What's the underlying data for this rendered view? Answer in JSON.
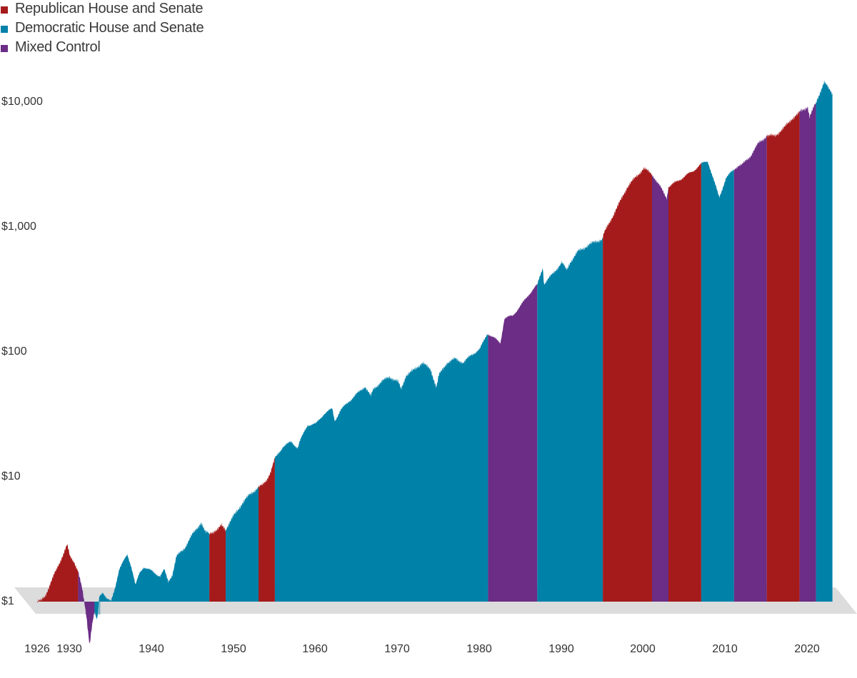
{
  "colors": {
    "republican": "#a51b1b",
    "democratic": "#0081a8",
    "mixed": "#6b2d85",
    "floor": "#dcdcdc"
  },
  "legend": [
    {
      "label": "Republican House and Senate",
      "party": "republican"
    },
    {
      "label": "Democratic House and Senate",
      "party": "democratic"
    },
    {
      "label": "Mixed Control",
      "party": "mixed"
    }
  ],
  "chart_data": {
    "type": "area",
    "yscale": "log",
    "ylim": [
      1,
      20000
    ],
    "xlim": [
      1926,
      2023
    ],
    "y_ticks": [
      {
        "value": 1,
        "label": "$1"
      },
      {
        "value": 10,
        "label": "$10"
      },
      {
        "value": 100,
        "label": "$100"
      },
      {
        "value": 1000,
        "label": "$1,000"
      },
      {
        "value": 10000,
        "label": "$10,000"
      }
    ],
    "x_ticks": [
      {
        "value": 1926,
        "label": "1926"
      },
      {
        "value": 1930,
        "label": "1930"
      },
      {
        "value": 1940,
        "label": "1940"
      },
      {
        "value": 1950,
        "label": "1950"
      },
      {
        "value": 1960,
        "label": "1960"
      },
      {
        "value": 1970,
        "label": "1970"
      },
      {
        "value": 1980,
        "label": "1980"
      },
      {
        "value": 1990,
        "label": "1990"
      },
      {
        "value": 2000,
        "label": "2000"
      },
      {
        "value": 2010,
        "label": "2010"
      },
      {
        "value": 2020,
        "label": "2020"
      }
    ],
    "series_points": [
      [
        1926.0,
        1.0
      ],
      [
        1926.5,
        1.02
      ],
      [
        1927.0,
        1.12
      ],
      [
        1928.0,
        1.6
      ],
      [
        1929.0,
        2.25
      ],
      [
        1929.67,
        2.85
      ],
      [
        1930.0,
        2.3
      ],
      [
        1930.5,
        2.1
      ],
      [
        1931.0,
        1.75
      ],
      [
        1931.5,
        1.25
      ],
      [
        1932.0,
        0.78
      ],
      [
        1932.4,
        0.45
      ],
      [
        1932.7,
        0.65
      ],
      [
        1933.0,
        0.82
      ],
      [
        1933.3,
        0.7
      ],
      [
        1933.6,
        1.12
      ],
      [
        1934.0,
        1.2
      ],
      [
        1934.5,
        1.05
      ],
      [
        1935.0,
        1.0
      ],
      [
        1935.5,
        1.3
      ],
      [
        1936.0,
        1.8
      ],
      [
        1937.0,
        2.4
      ],
      [
        1937.5,
        1.9
      ],
      [
        1938.0,
        1.35
      ],
      [
        1938.5,
        1.7
      ],
      [
        1939.0,
        1.9
      ],
      [
        1940.0,
        1.75
      ],
      [
        1941.0,
        1.6
      ],
      [
        1941.5,
        1.8
      ],
      [
        1942.0,
        1.45
      ],
      [
        1942.5,
        1.65
      ],
      [
        1943.0,
        2.3
      ],
      [
        1944.0,
        2.7
      ],
      [
        1945.0,
        3.5
      ],
      [
        1946.0,
        4.3
      ],
      [
        1946.5,
        3.6
      ],
      [
        1947.0,
        3.55
      ],
      [
        1948.0,
        3.75
      ],
      [
        1948.5,
        4.1
      ],
      [
        1949.0,
        3.8
      ],
      [
        1950.0,
        4.9
      ],
      [
        1951.0,
        6.1
      ],
      [
        1952.0,
        7.3
      ],
      [
        1953.0,
        8.2
      ],
      [
        1953.5,
        8.6
      ],
      [
        1954.0,
        9.5
      ],
      [
        1954.5,
        11.0
      ],
      [
        1955.0,
        14.0
      ],
      [
        1956.0,
        17.5
      ],
      [
        1957.0,
        19.0
      ],
      [
        1957.8,
        17.0
      ],
      [
        1958.0,
        19.0
      ],
      [
        1959.0,
        26.0
      ],
      [
        1960.0,
        26.5
      ],
      [
        1961.0,
        32.0
      ],
      [
        1962.0,
        35.0
      ],
      [
        1962.3,
        28.0
      ],
      [
        1963.0,
        34.0
      ],
      [
        1964.0,
        40.0
      ],
      [
        1965.0,
        46.0
      ],
      [
        1966.0,
        53.0
      ],
      [
        1966.7,
        44.0
      ],
      [
        1967.0,
        50.0
      ],
      [
        1968.0,
        58.0
      ],
      [
        1969.0,
        63.0
      ],
      [
        1970.0,
        58.0
      ],
      [
        1970.4,
        50.0
      ],
      [
        1971.0,
        65.0
      ],
      [
        1972.0,
        72.0
      ],
      [
        1973.0,
        82.0
      ],
      [
        1974.0,
        72.0
      ],
      [
        1974.7,
        52.0
      ],
      [
        1975.0,
        65.0
      ],
      [
        1976.0,
        82.0
      ],
      [
        1977.0,
        88.0
      ],
      [
        1978.0,
        82.0
      ],
      [
        1979.0,
        95.0
      ],
      [
        1980.0,
        105.0
      ],
      [
        1980.9,
        140.0
      ],
      [
        1981.0,
        140.0
      ],
      [
        1982.0,
        125.0
      ],
      [
        1982.5,
        118.0
      ],
      [
        1983.0,
        185.0
      ],
      [
        1984.0,
        195.0
      ],
      [
        1985.0,
        235.0
      ],
      [
        1986.0,
        290.0
      ],
      [
        1987.0,
        345.0
      ],
      [
        1987.7,
        480.0
      ],
      [
        1987.8,
        350.0
      ],
      [
        1988.0,
        360.0
      ],
      [
        1989.0,
        430.0
      ],
      [
        1990.0,
        520.0
      ],
      [
        1990.6,
        450.0
      ],
      [
        1991.0,
        520.0
      ],
      [
        1992.0,
        640.0
      ],
      [
        1993.0,
        700.0
      ],
      [
        1994.0,
        760.0
      ],
      [
        1995.0,
        800.0
      ],
      [
        1995.1,
        880.0
      ],
      [
        1996.0,
        1150.0
      ],
      [
        1997.0,
        1550.0
      ],
      [
        1998.0,
        2100.0
      ],
      [
        1999.0,
        2500.0
      ],
      [
        2000.0,
        2950.0
      ],
      [
        2001.0,
        2650.0
      ],
      [
        2002.0,
        2100.0
      ],
      [
        2002.8,
        1700.0
      ],
      [
        2003.0,
        2100.0
      ],
      [
        2004.0,
        2300.0
      ],
      [
        2005.0,
        2550.0
      ],
      [
        2006.0,
        2800.0
      ],
      [
        2007.0,
        3200.0
      ],
      [
        2007.8,
        3380.0
      ],
      [
        2008.5,
        2400.0
      ],
      [
        2009.2,
        1720.0
      ],
      [
        2010.0,
        2450.0
      ],
      [
        2011.0,
        2900.0
      ],
      [
        2011.5,
        3100.0
      ],
      [
        2012.0,
        3150.0
      ],
      [
        2013.0,
        3700.0
      ],
      [
        2014.0,
        4700.0
      ],
      [
        2015.0,
        5350.0
      ],
      [
        2016.0,
        5400.0
      ],
      [
        2017.0,
        6100.0
      ],
      [
        2018.0,
        7300.0
      ],
      [
        2018.9,
        8100.0
      ],
      [
        2019.0,
        8400.0
      ],
      [
        2020.0,
        9200.0
      ],
      [
        2020.2,
        7500.0
      ],
      [
        2021.0,
        10000.0
      ],
      [
        2022.0,
        14400.0
      ],
      [
        2022.5,
        13000.0
      ],
      [
        2023.0,
        11800.0
      ]
    ],
    "control_periods": [
      {
        "start": 1926.0,
        "end": 1931.0,
        "party": "republican"
      },
      {
        "start": 1931.0,
        "end": 1933.0,
        "party": "mixed"
      },
      {
        "start": 1933.0,
        "end": 1947.0,
        "party": "democratic"
      },
      {
        "start": 1947.0,
        "end": 1949.0,
        "party": "republican"
      },
      {
        "start": 1949.0,
        "end": 1953.0,
        "party": "democratic"
      },
      {
        "start": 1953.0,
        "end": 1955.0,
        "party": "republican"
      },
      {
        "start": 1955.0,
        "end": 1981.0,
        "party": "democratic"
      },
      {
        "start": 1981.0,
        "end": 1987.0,
        "party": "mixed"
      },
      {
        "start": 1987.0,
        "end": 1995.0,
        "party": "democratic"
      },
      {
        "start": 1995.0,
        "end": 2001.0,
        "party": "republican"
      },
      {
        "start": 2001.0,
        "end": 2003.0,
        "party": "mixed"
      },
      {
        "start": 2003.0,
        "end": 2007.0,
        "party": "republican"
      },
      {
        "start": 2007.0,
        "end": 2011.0,
        "party": "democratic"
      },
      {
        "start": 2011.0,
        "end": 2015.0,
        "party": "mixed"
      },
      {
        "start": 2015.0,
        "end": 2019.0,
        "party": "republican"
      },
      {
        "start": 2019.0,
        "end": 2021.0,
        "party": "mixed"
      },
      {
        "start": 2021.0,
        "end": 2023.0,
        "party": "democratic"
      }
    ]
  }
}
